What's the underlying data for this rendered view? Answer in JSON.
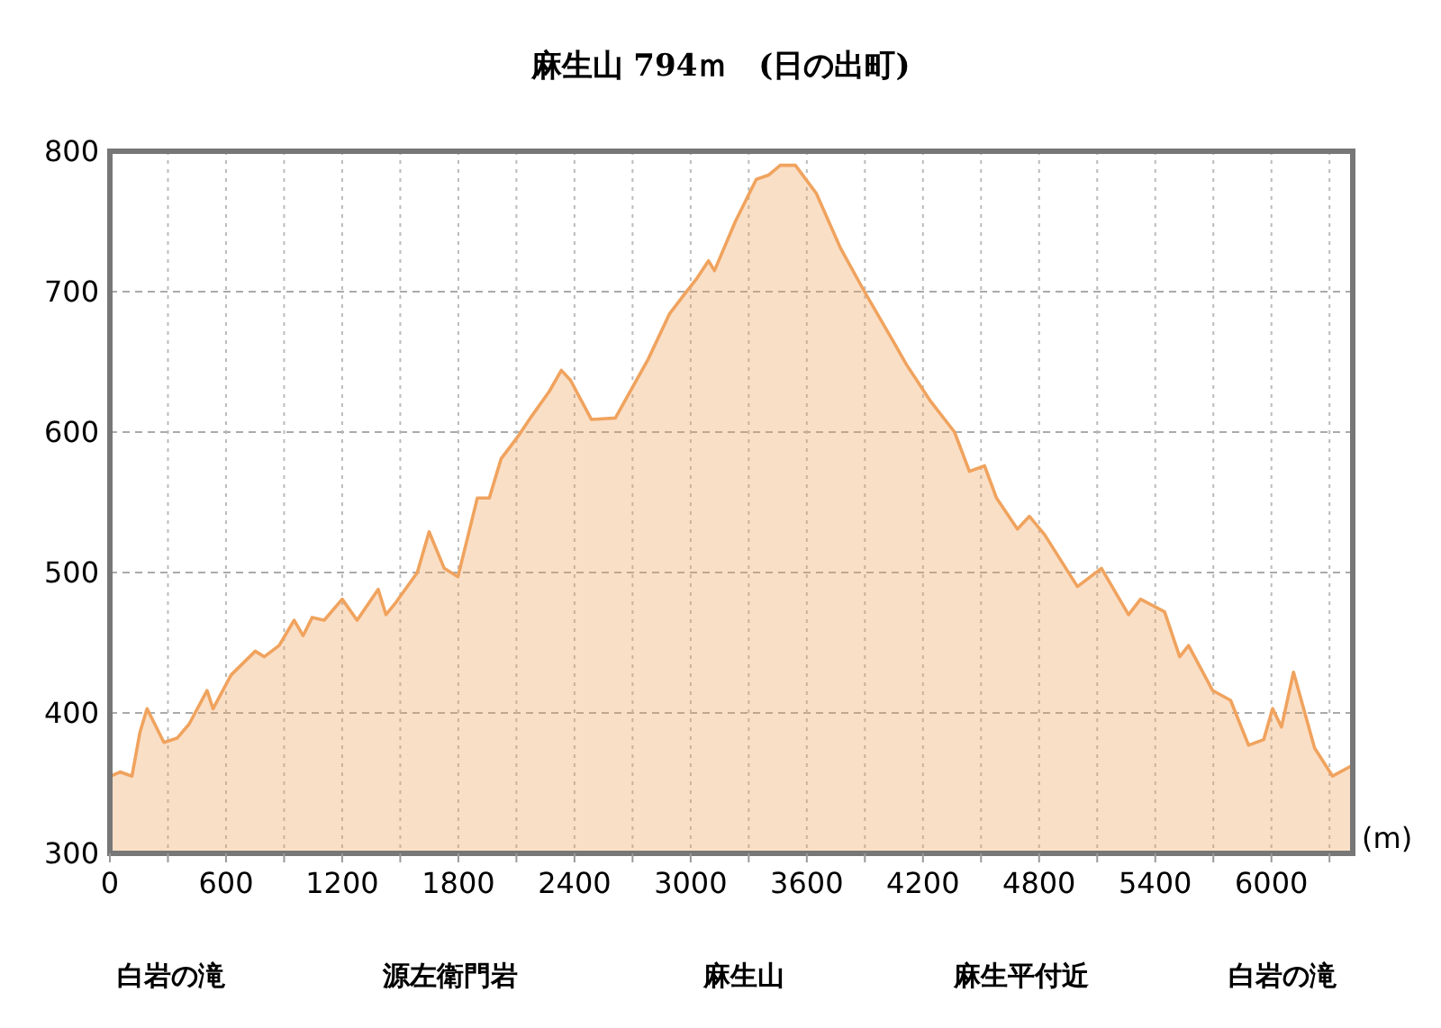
{
  "chart_data": {
    "type": "area",
    "title": "麻生山 794ｍ　(日の出町)",
    "xlabel": "(m)",
    "annotations": [
      "白岩の滝",
      "源左衛門岩",
      "麻生山",
      "麻生平付近",
      "白岩の滝"
    ],
    "x": [
      5,
      53,
      114,
      155,
      192,
      279,
      347,
      409,
      502,
      533,
      626,
      751,
      797,
      874,
      952,
      998,
      1045,
      1107,
      1200,
      1277,
      1386,
      1426,
      1479,
      1588,
      1649,
      1727,
      1798,
      1898,
      1960,
      2021,
      2114,
      2177,
      2270,
      2332,
      2379,
      2487,
      2611,
      2781,
      2890,
      2967,
      3030,
      3092,
      3123,
      3231,
      3339,
      3402,
      3463,
      3541,
      3649,
      3774,
      3898,
      4053,
      4115,
      4239,
      4363,
      4440,
      4518,
      4580,
      4688,
      4750,
      4828,
      4998,
      5122,
      5262,
      5324,
      5448,
      5526,
      5572,
      5696,
      5789,
      5882,
      5960,
      6006,
      6052,
      6114,
      6223,
      6316,
      6409
    ],
    "series": [
      {
        "color": "#f0a35e",
        "values": [
          355,
          358,
          355,
          386,
          403,
          379,
          382,
          392,
          416,
          403,
          427,
          444,
          440,
          448,
          466,
          455,
          468,
          466,
          481,
          466,
          488,
          470,
          479,
          500,
          529,
          503,
          497,
          553,
          553,
          581,
          598,
          611,
          629,
          644,
          637,
          609,
          610,
          652,
          684,
          698,
          709,
          722,
          715,
          750,
          780,
          783,
          790,
          790,
          770,
          731,
          700,
          663,
          648,
          622,
          600,
          572,
          576,
          553,
          531,
          540,
          527,
          490,
          503,
          470,
          481,
          472,
          440,
          448,
          416,
          409,
          377,
          381,
          403,
          390,
          429,
          375,
          355,
          362
        ]
      }
    ],
    "xlim": [
      0,
      6420
    ],
    "ylim": [
      300,
      800
    ],
    "xticks": [
      0,
      {
        "value": 300,
        "label": null
      },
      600,
      {
        "value": 900,
        "label": null
      },
      1200,
      {
        "value": 1500,
        "label": null
      },
      1800,
      {
        "value": 2100,
        "label": null
      },
      2400,
      {
        "value": 2700,
        "label": null
      },
      3000,
      {
        "value": 3300,
        "label": null
      },
      3600,
      {
        "value": 3900,
        "label": null
      },
      4200,
      {
        "value": 4500,
        "label": null
      },
      4800,
      {
        "value": 5100,
        "label": null
      },
      5400,
      {
        "value": 5700,
        "label": null
      },
      6000,
      {
        "value": 6300,
        "label": null
      }
    ],
    "yticks": [
      300,
      400,
      500,
      600,
      700,
      800
    ],
    "grid": true
  }
}
